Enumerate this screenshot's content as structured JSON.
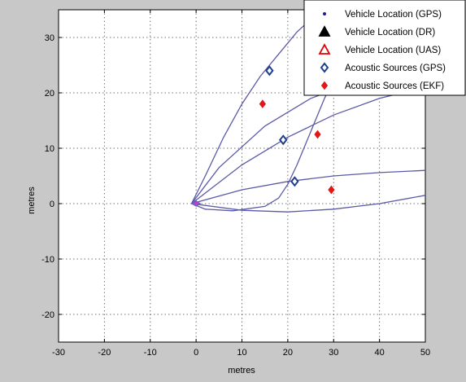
{
  "figure": {
    "background": "#c8c8c8"
  },
  "chart_data": {
    "type": "scatter",
    "xlabel": "metres",
    "ylabel": "metres",
    "xlim": [
      -30,
      50
    ],
    "ylim": [
      -25,
      35
    ],
    "xticks": [
      -30,
      -20,
      -10,
      0,
      10,
      20,
      30,
      40,
      50
    ],
    "yticks": [
      -20,
      -10,
      0,
      10,
      20,
      30
    ],
    "grid": true,
    "legend_position": "top-right",
    "series": [
      {
        "name": "Vehicle Location (GPS)",
        "marker": "dot",
        "color": "#1a1a9a",
        "points": [
          [
            0,
            0
          ]
        ]
      },
      {
        "name": "Vehicle Location (DR)",
        "marker": "triangle",
        "color": "#000000",
        "points": [
          [
            0,
            0
          ]
        ]
      },
      {
        "name": "Vehicle Location (UAS)",
        "marker": "triangle",
        "color": "#e00000",
        "points": [
          [
            0,
            0
          ]
        ]
      },
      {
        "name": "Acoustic Sources (GPS)",
        "marker": "diamond-open",
        "color": "#1f3f8f",
        "points": [
          [
            16,
            24
          ],
          [
            19,
            11.5
          ],
          [
            21.5,
            4
          ]
        ]
      },
      {
        "name": "Acoustic Sources (EKF)",
        "marker": "diamond-filled",
        "color": "#e01818",
        "points": [
          [
            14.5,
            18
          ],
          [
            26.5,
            12.5
          ],
          [
            29.5,
            2.5
          ]
        ]
      }
    ],
    "beam_curves": {
      "color": "#5a5aa8",
      "lines": [
        [
          [
            -1,
            0
          ],
          [
            2,
            5
          ],
          [
            6,
            12
          ],
          [
            10,
            18
          ],
          [
            14,
            23
          ],
          [
            18,
            27
          ],
          [
            22,
            31
          ],
          [
            26,
            34
          ],
          [
            29,
            36
          ]
        ],
        [
          [
            -1,
            0
          ],
          [
            5,
            6.5
          ],
          [
            15,
            14
          ],
          [
            25,
            19
          ],
          [
            35,
            22
          ],
          [
            45,
            24
          ],
          [
            50,
            25
          ]
        ],
        [
          [
            -1,
            0
          ],
          [
            10,
            7
          ],
          [
            20,
            12
          ],
          [
            30,
            16
          ],
          [
            40,
            19
          ],
          [
            50,
            21
          ]
        ],
        [
          [
            -1,
            0
          ],
          [
            10,
            2.5
          ],
          [
            20,
            4
          ],
          [
            30,
            5
          ],
          [
            40,
            5.6
          ],
          [
            50,
            6
          ]
        ],
        [
          [
            -1,
            0
          ],
          [
            10,
            -1.2
          ],
          [
            20,
            -1.5
          ],
          [
            30,
            -1
          ],
          [
            40,
            0
          ],
          [
            50,
            1.5
          ]
        ],
        [
          [
            -1,
            0
          ],
          [
            2,
            -1
          ],
          [
            8,
            -1.3
          ],
          [
            15,
            -0.5
          ],
          [
            18,
            1
          ],
          [
            20,
            3.5
          ],
          [
            22,
            7
          ],
          [
            25,
            13
          ],
          [
            28,
            19
          ],
          [
            31,
            24
          ]
        ]
      ]
    }
  }
}
